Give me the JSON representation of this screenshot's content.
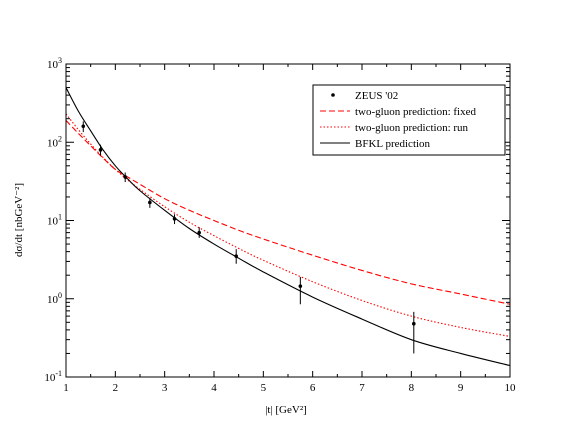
{
  "chart_data": {
    "type": "line",
    "title": "",
    "xlabel": "|t|  [GeV²]",
    "ylabel": "dσ/dt  [nbGeV⁻²]",
    "x_scale": "linear",
    "y_scale": "log",
    "xlim": [
      1,
      10
    ],
    "ylim": [
      0.1,
      1000
    ],
    "x_ticks": [
      1,
      2,
      3,
      4,
      5,
      6,
      7,
      8,
      9,
      10
    ],
    "y_ticks": [
      0.1,
      1,
      10,
      100,
      1000
    ],
    "y_tick_labels": [
      {
        "base": "10",
        "exp": "-1"
      },
      {
        "base": "10",
        "exp": "0"
      },
      {
        "base": "10",
        "exp": "1"
      },
      {
        "base": "10",
        "exp": "2"
      },
      {
        "base": "10",
        "exp": "3"
      }
    ],
    "grid": false,
    "legend_position": "top-right",
    "points": {
      "name": "ZEUS  '02",
      "color": "#000000",
      "x": [
        1.35,
        1.7,
        2.2,
        2.7,
        3.2,
        3.7,
        4.45,
        5.75,
        8.05
      ],
      "y": [
        160,
        80,
        36,
        17,
        10.5,
        7.0,
        3.5,
        1.45,
        0.48
      ],
      "y_low": [
        135,
        68,
        31,
        14.5,
        9.0,
        6.0,
        2.8,
        0.85,
        0.2
      ],
      "y_high": [
        185,
        93,
        41,
        19.5,
        12.0,
        8.2,
        4.3,
        1.9,
        0.68
      ]
    },
    "series": [
      {
        "name": "two-gluon prediction: fixed",
        "style": "dashed",
        "color": "#ff0000",
        "x": [
          1.0,
          1.25,
          1.5,
          1.75,
          2.0,
          2.25,
          2.5,
          3.0,
          3.5,
          4.0,
          4.5,
          5.0,
          6.0,
          7.0,
          8.0,
          9.0,
          10.0
        ],
        "y": [
          190,
          130,
          90,
          63,
          45,
          36,
          29,
          19,
          13.5,
          10,
          7.5,
          5.8,
          3.6,
          2.3,
          1.55,
          1.15,
          0.85
        ]
      },
      {
        "name": "two-gluon prediction: run",
        "style": "dotted",
        "color": "#ff0000",
        "x": [
          1.0,
          1.25,
          1.5,
          1.75,
          2.0,
          2.25,
          2.5,
          3.0,
          3.5,
          4.0,
          4.5,
          5.0,
          6.0,
          7.0,
          8.0,
          9.0,
          10.0
        ],
        "y": [
          230,
          145,
          95,
          64,
          45,
          33,
          25,
          15,
          9.5,
          6.4,
          4.4,
          3.1,
          1.65,
          0.95,
          0.6,
          0.43,
          0.33
        ]
      },
      {
        "name": "BFKL prediction",
        "style": "solid",
        "color": "#000000",
        "x": [
          1.0,
          1.25,
          1.5,
          1.75,
          2.0,
          2.25,
          2.5,
          3.0,
          3.5,
          4.0,
          4.5,
          5.0,
          6.0,
          7.0,
          8.0,
          9.0,
          10.0
        ],
        "y": [
          500,
          250,
          140,
          80,
          50,
          34,
          24,
          13.5,
          7.9,
          5.0,
          3.3,
          2.2,
          1.05,
          0.55,
          0.3,
          0.2,
          0.14
        ]
      }
    ]
  }
}
